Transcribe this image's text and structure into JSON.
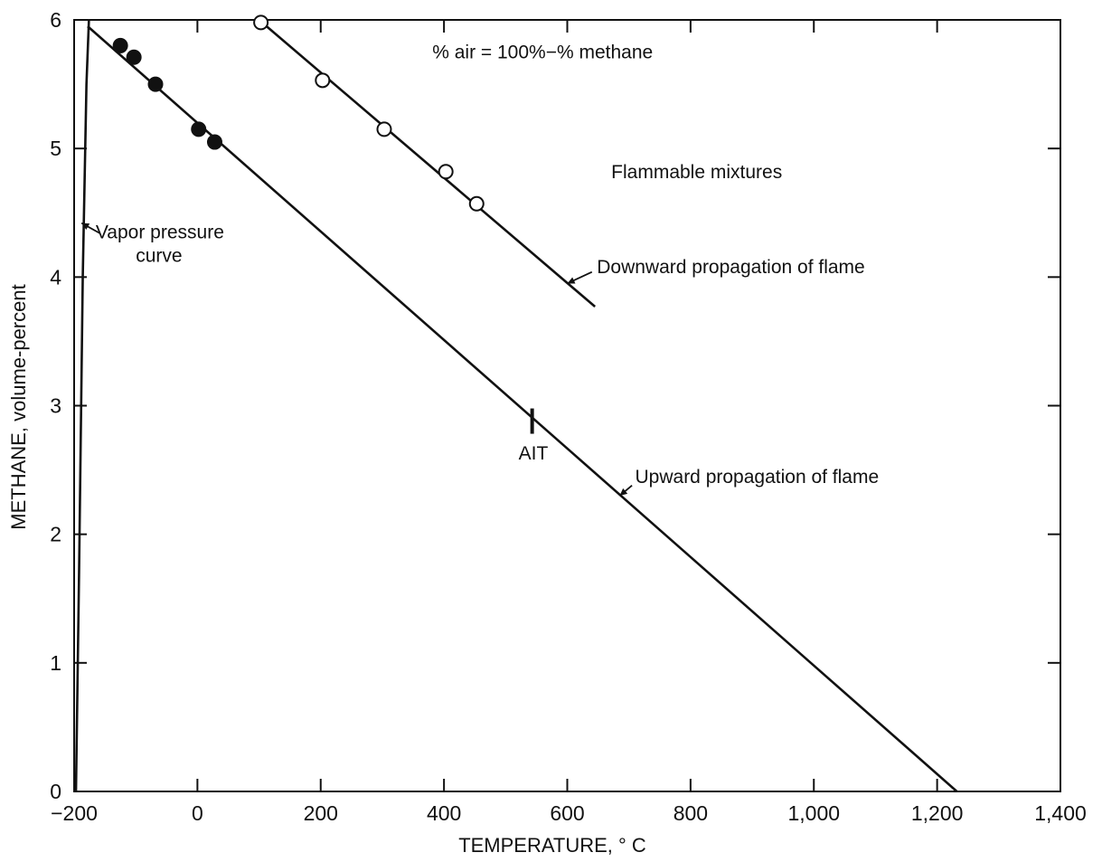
{
  "chart_data": {
    "type": "line",
    "xlabel": "TEMPERATURE, ° C",
    "ylabel": "METHANE, volume-percent",
    "xlim": [
      -200,
      1400
    ],
    "ylim": [
      0,
      6
    ],
    "x_ticks": [
      -200,
      0,
      200,
      400,
      600,
      800,
      1000,
      1200,
      1400
    ],
    "x_tick_labels": [
      "−200",
      "0",
      "200",
      "400",
      "600",
      "800",
      "1,000",
      "1,200",
      "1,400"
    ],
    "y_ticks": [
      0,
      1,
      2,
      3,
      4,
      5,
      6
    ],
    "y_tick_labels": [
      "0",
      "1",
      "2",
      "3",
      "4",
      "5",
      "6"
    ],
    "grid": false,
    "series": [
      {
        "name": "Upward propagation of flame",
        "style": "line",
        "x": [
          -178,
          1232
        ],
        "y": [
          5.95,
          0
        ]
      },
      {
        "name": "Downward propagation of flame",
        "style": "line",
        "x": [
          100,
          645
        ],
        "y": [
          6.0,
          3.77
        ]
      },
      {
        "name": "Vapor pressure curve",
        "style": "line",
        "x": [
          -197,
          -192,
          -186,
          -180,
          -176
        ],
        "y": [
          0,
          1.7,
          4.0,
          5.5,
          6.0
        ]
      },
      {
        "style": "points-filled",
        "x": [
          -125,
          -103,
          -68,
          2,
          28
        ],
        "y": [
          5.8,
          5.71,
          5.5,
          5.15,
          5.05
        ]
      },
      {
        "style": "points-open",
        "x": [
          103,
          203,
          303,
          403,
          453
        ],
        "y": [
          5.98,
          5.53,
          5.15,
          4.82,
          4.57
        ]
      }
    ],
    "annotations": [
      {
        "text": "% air = 100%−% methane",
        "x": 560,
        "y": 5.7,
        "anchor": "middle"
      },
      {
        "text": "Flammable mixtures",
        "x": 810,
        "y": 4.77,
        "anchor": "middle"
      },
      {
        "text": "Vapor pressure",
        "x": -165,
        "y": 4.3,
        "anchor": "start"
      },
      {
        "text": "curve",
        "x": -100,
        "y": 4.12,
        "anchor": "start"
      },
      {
        "text": "Downward propagation of flame",
        "x": 648,
        "y": 4.03,
        "anchor": "start"
      },
      {
        "text": "Upward propagation of flame",
        "x": 710,
        "y": 2.4,
        "anchor": "start"
      },
      {
        "text": "AIT",
        "x": 545,
        "y": 2.58,
        "anchor": "middle"
      }
    ],
    "ait_marker": {
      "x": 543,
      "y": 2.88
    },
    "leaders": [
      {
        "x1": -188,
        "y1": 4.42,
        "x2": -158,
        "y2": 4.34
      },
      {
        "x1": 600,
        "y1": 3.95,
        "x2": 640,
        "y2": 4.04
      },
      {
        "x1": 685,
        "y1": 2.3,
        "x2": 705,
        "y2": 2.38
      }
    ]
  }
}
